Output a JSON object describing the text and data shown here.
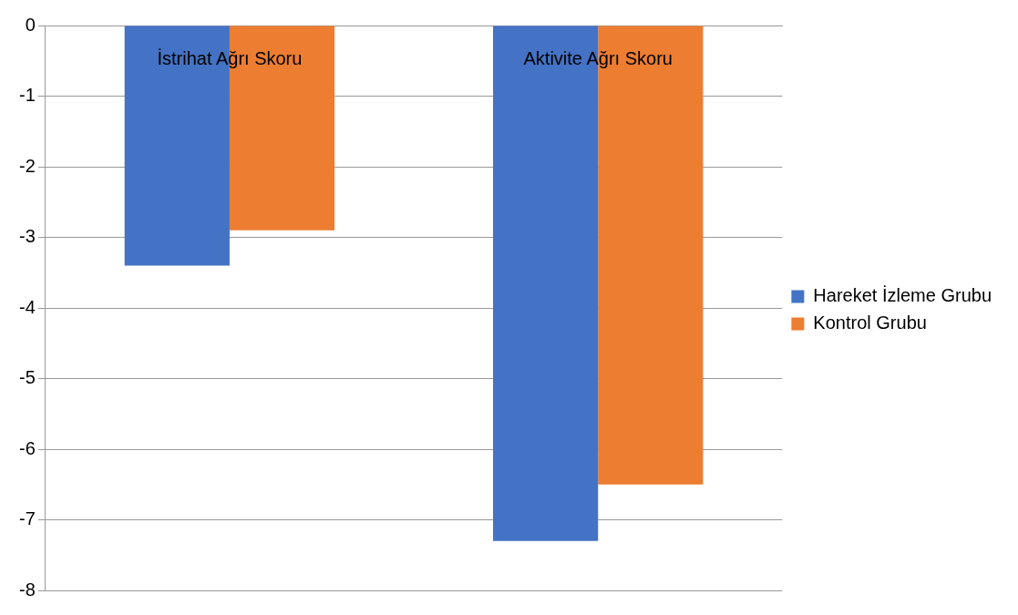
{
  "chart_data": {
    "type": "bar",
    "categories": [
      "İstrihat Ağrı Skoru",
      "Aktivite Ağrı Skoru"
    ],
    "series": [
      {
        "name": "Hareket İzleme Grubu",
        "color": "#4472c4",
        "values": [
          -3.4,
          -7.3
        ]
      },
      {
        "name": "Kontrol Grubu",
        "color": "#ed7d31",
        "values": [
          -2.9,
          -6.5
        ]
      }
    ],
    "ylim": [
      -8,
      0
    ],
    "yticks": [
      0,
      -1,
      -2,
      -3,
      -4,
      -5,
      -6,
      -7,
      -8
    ],
    "grid": "y",
    "legend": "right"
  }
}
